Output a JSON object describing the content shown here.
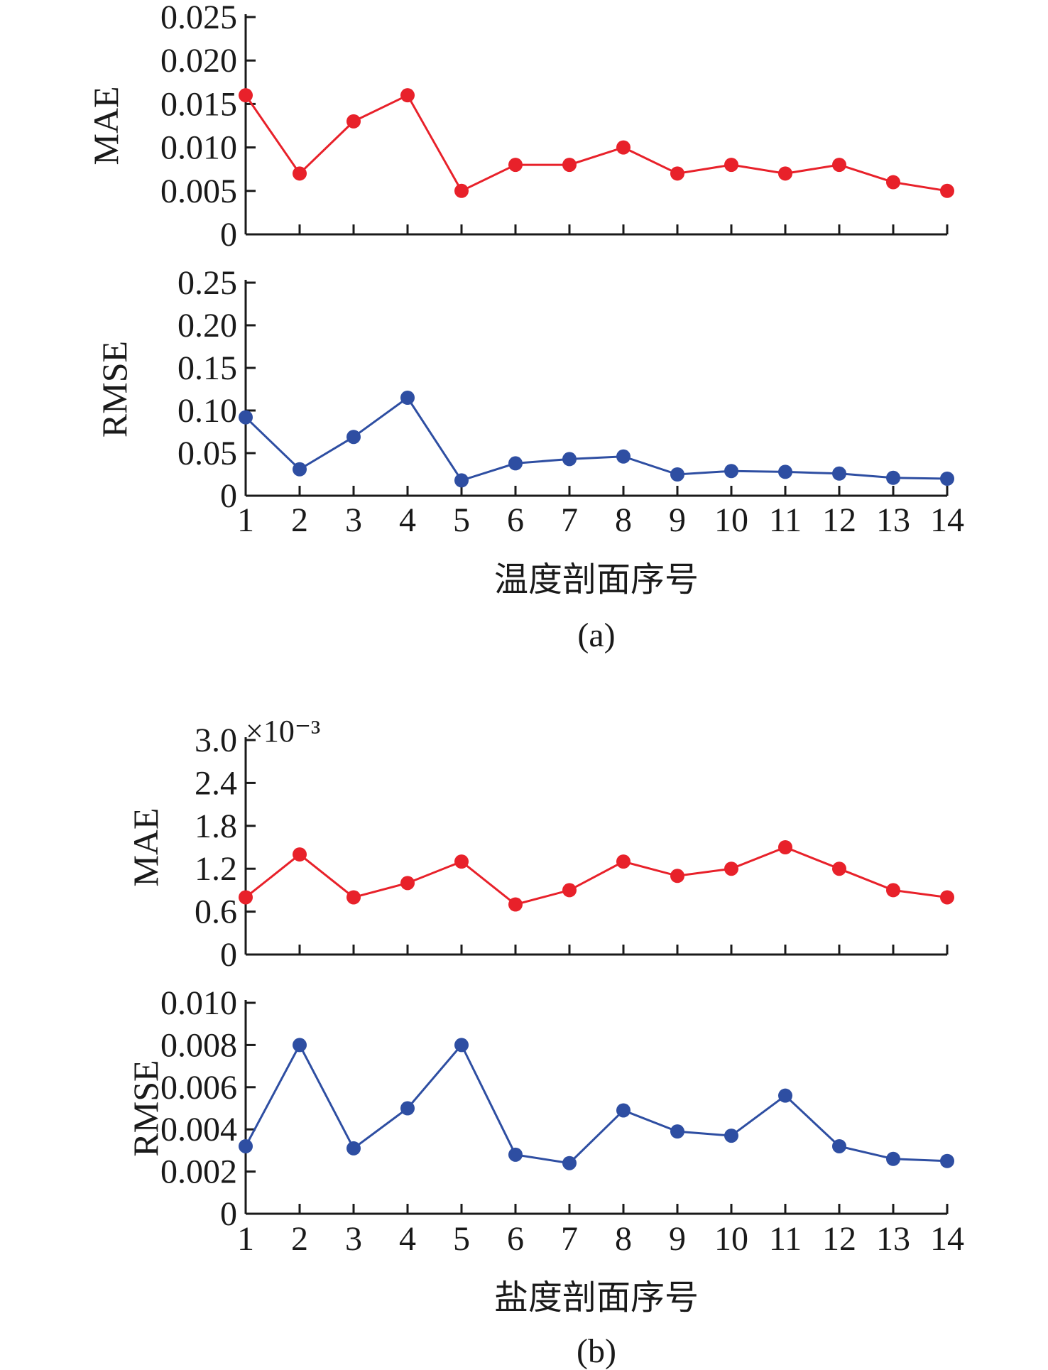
{
  "chart_data": [
    {
      "type": "line",
      "panel_label": "(a)",
      "xlabel": "温度剖面序号",
      "x": [
        1,
        2,
        3,
        4,
        5,
        6,
        7,
        8,
        9,
        10,
        11,
        12,
        13,
        14
      ],
      "subplots": [
        {
          "ylabel": "MAE",
          "ylim": [
            0,
            0.025
          ],
          "yticks": [
            "0",
            "0.005",
            "0.010",
            "0.015",
            "0.020",
            "0.025"
          ],
          "ytick_values": [
            0,
            0.005,
            0.01,
            0.015,
            0.02,
            0.025
          ],
          "color": "#e8212a",
          "values": [
            0.016,
            0.007,
            0.013,
            0.016,
            0.005,
            0.008,
            0.008,
            0.01,
            0.007,
            0.008,
            0.007,
            0.008,
            0.006,
            0.005
          ]
        },
        {
          "ylabel": "RMSE",
          "ylim": [
            0,
            0.25
          ],
          "yticks": [
            "0",
            "0.05",
            "0.10",
            "0.15",
            "0.20",
            "0.25"
          ],
          "ytick_values": [
            0,
            0.05,
            0.1,
            0.15,
            0.2,
            0.25
          ],
          "color": "#2e4ea2",
          "values": [
            0.092,
            0.031,
            0.069,
            0.115,
            0.018,
            0.038,
            0.043,
            0.046,
            0.025,
            0.029,
            0.028,
            0.026,
            0.021,
            0.02
          ]
        }
      ]
    },
    {
      "type": "line",
      "panel_label": "(b)",
      "xlabel": "盐度剖面序号",
      "x": [
        1,
        2,
        3,
        4,
        5,
        6,
        7,
        8,
        9,
        10,
        11,
        12,
        13,
        14
      ],
      "subplots": [
        {
          "ylabel": "MAE",
          "multiplier": "×10⁻³",
          "ylim": [
            0,
            3.0
          ],
          "yticks": [
            "0",
            "0.6",
            "1.2",
            "1.8",
            "2.4",
            "3.0"
          ],
          "ytick_values": [
            0,
            0.6,
            1.2,
            1.8,
            2.4,
            3.0
          ],
          "color": "#e8212a",
          "values": [
            0.8,
            1.4,
            0.8,
            1.0,
            1.3,
            0.7,
            0.9,
            1.3,
            1.1,
            1.2,
            1.5,
            1.2,
            0.9,
            0.8
          ]
        },
        {
          "ylabel": "RMSE",
          "ylim": [
            0,
            0.01
          ],
          "yticks": [
            "0",
            "0.002",
            "0.004",
            "0.006",
            "0.008",
            "0.010"
          ],
          "ytick_values": [
            0,
            0.002,
            0.004,
            0.006,
            0.008,
            0.01
          ],
          "color": "#2e4ea2",
          "values": [
            0.0032,
            0.008,
            0.0031,
            0.005,
            0.008,
            0.0028,
            0.0024,
            0.0049,
            0.0039,
            0.0037,
            0.0056,
            0.0032,
            0.0026,
            0.0025
          ]
        }
      ]
    }
  ]
}
